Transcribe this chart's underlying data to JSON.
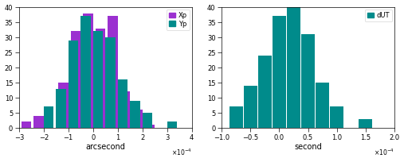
{
  "left": {
    "xp_centers": [
      -2.5,
      -2.0,
      -1.5,
      -1.0,
      -0.5,
      0.0,
      0.5,
      1.0,
      1.5,
      2.0,
      2.5,
      3.0
    ],
    "xp_values": [
      2,
      4,
      0,
      15,
      32,
      38,
      33,
      37,
      12,
      6,
      1,
      0
    ],
    "yp_centers": [
      -2.5,
      -2.0,
      -1.5,
      -1.0,
      -0.5,
      0.0,
      0.5,
      1.0,
      1.5,
      2.0,
      2.5,
      3.0
    ],
    "yp_values": [
      0,
      7,
      13,
      29,
      37,
      32,
      30,
      16,
      9,
      5,
      0,
      2
    ],
    "xlim": [
      -3,
      4
    ],
    "ylim": [
      0,
      40
    ],
    "xticks": [
      -3,
      -2,
      -1,
      0,
      1,
      2,
      3,
      4
    ],
    "yticks": [
      0,
      5,
      10,
      15,
      20,
      25,
      30,
      35,
      40
    ],
    "xlabel": "arcsecond",
    "bar_width": 0.4,
    "xp_color": "#9B30D0",
    "yp_color": "#008B8B",
    "legend_labels": [
      "Xp",
      "Yp"
    ]
  },
  "right": {
    "centers": [
      -0.75,
      -0.5,
      -0.25,
      0.0,
      0.25,
      0.5,
      0.75,
      1.0,
      1.25,
      1.5,
      1.75
    ],
    "values": [
      7,
      14,
      24,
      37,
      40,
      31,
      15,
      7,
      0,
      3,
      0
    ],
    "xlim": [
      -1,
      2
    ],
    "ylim": [
      0,
      40
    ],
    "xticks": [
      -1,
      -0.5,
      0,
      0.5,
      1,
      1.5,
      2
    ],
    "yticks": [
      0,
      5,
      10,
      15,
      20,
      25,
      30,
      35,
      40
    ],
    "xlabel": "second",
    "bar_width": 0.23,
    "bar_color": "#008B8B",
    "legend_label": "dUT"
  },
  "background": "#ffffff",
  "tick_labelsize": 6,
  "xlabel_fontsize": 7,
  "legend_fontsize": 6
}
